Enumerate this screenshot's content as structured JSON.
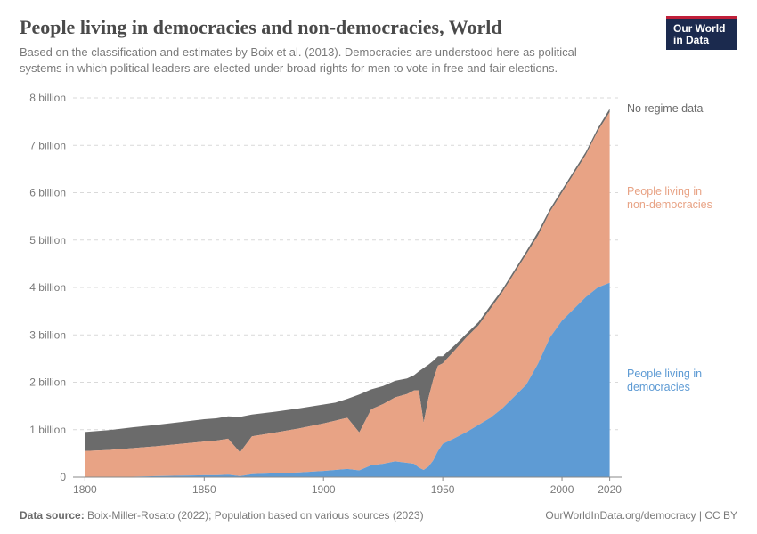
{
  "logo": {
    "line1": "Our World",
    "line2": "in Data",
    "bg": "#1b2a4e",
    "accent": "#c0203a"
  },
  "title": "People living in democracies and non-democracies, World",
  "subtitle": "Based on the classification and estimates by Boix et al. (2013). Democracies are understood here as political systems in which political leaders are elected under broad rights for men to vote in free and fair elections.",
  "chart": {
    "type": "stacked-area",
    "xlim": [
      1795,
      2025
    ],
    "ylim": [
      0,
      8
    ],
    "y_unit": "billion",
    "y_ticks": [
      0,
      1,
      2,
      3,
      4,
      5,
      6,
      7,
      8
    ],
    "y_tick_labels": [
      "0",
      "1 billion",
      "2 billion",
      "3 billion",
      "4 billion",
      "5 billion",
      "6 billion",
      "7 billion",
      "8 billion"
    ],
    "x_ticks": [
      1800,
      1850,
      1900,
      1950,
      2000,
      2020
    ],
    "grid_color": "#d9d9d9",
    "axis_color": "#888888",
    "background": "#ffffff",
    "label_fontsize": 12,
    "title_fontsize": 22,
    "subtitle_fontsize": 13,
    "series": [
      {
        "key": "democracy",
        "label": "People living in\ndemocracies",
        "color": "#5e9bd4"
      },
      {
        "key": "nondemocracy",
        "label": "People living in\nnon-democracies",
        "color": "#e8a385"
      },
      {
        "key": "noregime",
        "label": "No regime data",
        "color": "#6b6b6b"
      }
    ],
    "years": [
      1800,
      1810,
      1820,
      1830,
      1840,
      1850,
      1855,
      1860,
      1865,
      1870,
      1880,
      1890,
      1900,
      1905,
      1910,
      1915,
      1920,
      1925,
      1930,
      1935,
      1938,
      1940,
      1942,
      1944,
      1946,
      1948,
      1950,
      1955,
      1960,
      1965,
      1970,
      1975,
      1980,
      1985,
      1990,
      1995,
      2000,
      2005,
      2010,
      2015,
      2020
    ],
    "democracy": [
      0.0,
      0.0,
      0.01,
      0.02,
      0.03,
      0.04,
      0.04,
      0.05,
      0.02,
      0.06,
      0.08,
      0.1,
      0.13,
      0.15,
      0.17,
      0.14,
      0.25,
      0.28,
      0.33,
      0.3,
      0.28,
      0.2,
      0.15,
      0.22,
      0.35,
      0.55,
      0.7,
      0.82,
      0.95,
      1.1,
      1.25,
      1.45,
      1.7,
      1.95,
      2.4,
      2.95,
      3.3,
      3.55,
      3.8,
      4.0,
      4.1
    ],
    "nondemocracy": [
      0.55,
      0.57,
      0.6,
      0.63,
      0.67,
      0.71,
      0.73,
      0.76,
      0.5,
      0.8,
      0.86,
      0.93,
      1.0,
      1.04,
      1.08,
      0.8,
      1.18,
      1.26,
      1.35,
      1.45,
      1.55,
      1.63,
      1.0,
      1.45,
      1.7,
      1.8,
      1.7,
      1.85,
      2.0,
      2.1,
      2.3,
      2.45,
      2.6,
      2.75,
      2.7,
      2.65,
      2.7,
      2.85,
      3.0,
      3.3,
      3.6
    ],
    "noregime": [
      0.4,
      0.42,
      0.44,
      0.45,
      0.46,
      0.47,
      0.47,
      0.47,
      0.75,
      0.46,
      0.44,
      0.42,
      0.4,
      0.38,
      0.4,
      0.8,
      0.42,
      0.38,
      0.35,
      0.33,
      0.32,
      0.4,
      1.15,
      0.7,
      0.4,
      0.2,
      0.15,
      0.11,
      0.08,
      0.07,
      0.07,
      0.06,
      0.06,
      0.06,
      0.08,
      0.06,
      0.06,
      0.06,
      0.06,
      0.06,
      0.07
    ]
  },
  "footer": {
    "source_prefix": "Data source:",
    "source": "Boix-Miller-Rosato (2022); Population based on various sources (2023)",
    "credit": "OurWorldInData.org/democracy | CC BY"
  }
}
